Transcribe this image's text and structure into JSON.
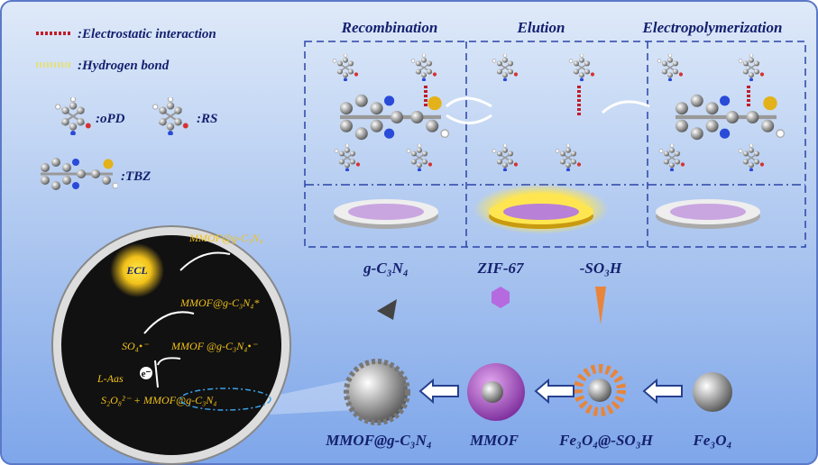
{
  "legend": {
    "electrostatic": ":Electrostatic interaction",
    "hydrogen_bond": ":Hydrogen bond",
    "opd": ":oPD",
    "rs": ":RS",
    "tbz": ":TBZ"
  },
  "panels": [
    "Recombination",
    "Elution",
    "Electropolymerization"
  ],
  "ecl_cycle": {
    "ecl": "ECL",
    "product": "MMOF@g-C₃N₄",
    "excited": "MMOF@g-C₃N₄*",
    "sulfate_radical": "SO₄•⁻",
    "anion_radical": "MMOF @g-C₃N₄•⁻",
    "laas": "L-Aas",
    "electron": "e⁻",
    "reactants": "S₂O₈²⁻ + MMOF@g-C₃N₄"
  },
  "synthesis": {
    "reagents": [
      "g-C₃N₄",
      "ZIF-67",
      "-SO₃H"
    ],
    "products": [
      "MMOF@g-C₃N₄",
      "MMOF",
      "Fe₃O₄@-SO₃H",
      "Fe₃O₄"
    ]
  }
}
